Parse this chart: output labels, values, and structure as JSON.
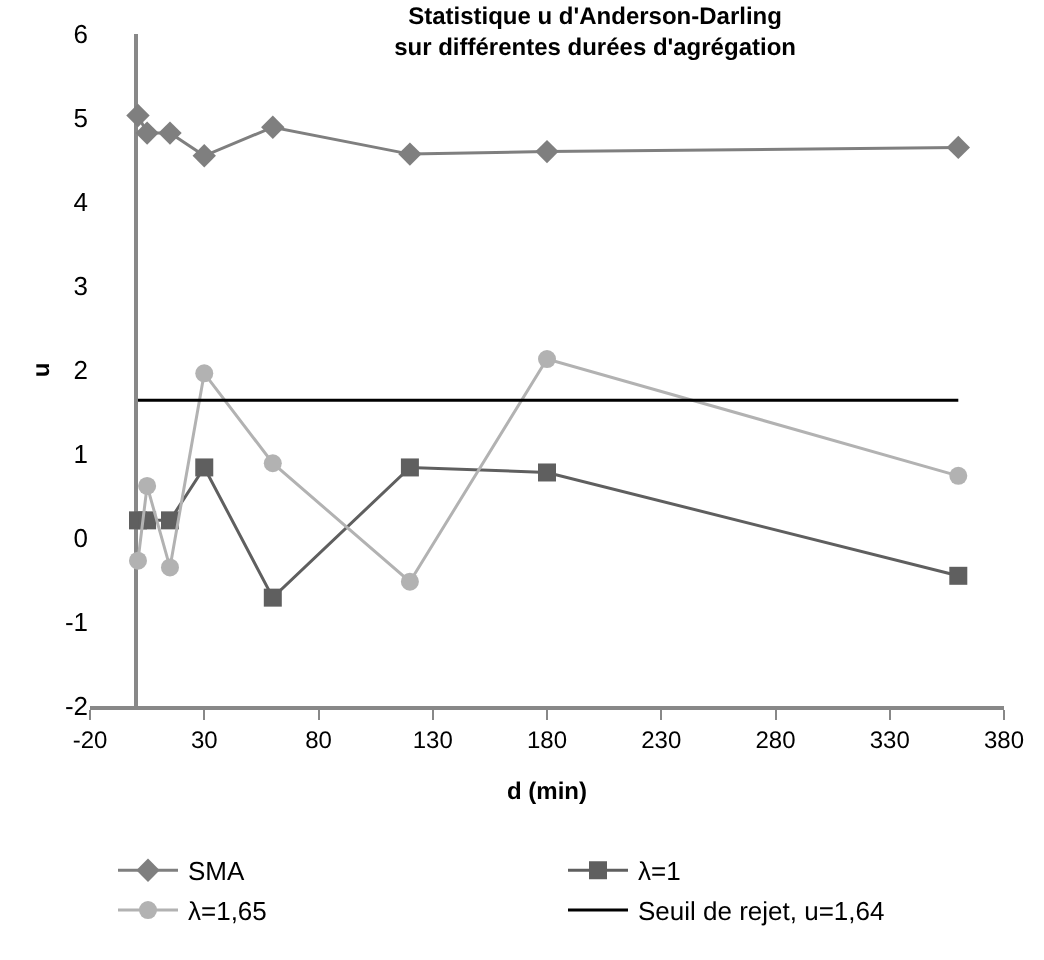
{
  "chart_data": {
    "type": "line",
    "title": "Statistique u d'Anderson-Darling\nsur différentes durées d'agrégation",
    "xlabel": "d (min)",
    "ylabel": "u",
    "x": [
      1,
      5,
      15,
      30,
      60,
      120,
      180,
      360
    ],
    "series": [
      {
        "name": "SMA",
        "color": "#7f7f7f",
        "marker": "diamond",
        "values": [
          5.03,
          4.82,
          4.82,
          4.55,
          4.89,
          4.57,
          4.6,
          4.65
        ]
      },
      {
        "name": "λ=1",
        "color": "#5f5f5f",
        "marker": "square",
        "values": [
          0.21,
          0.21,
          0.21,
          0.84,
          -0.71,
          0.84,
          0.78,
          -0.45
        ]
      },
      {
        "name": "λ=1,65",
        "color": "#b2b2b2",
        "marker": "circle",
        "values": [
          -0.27,
          0.62,
          -0.35,
          1.96,
          0.89,
          -0.52,
          2.13,
          0.74
        ]
      },
      {
        "name": "Seuil de rejet, u=1,64",
        "color": "#000000",
        "marker": "none",
        "x": [
          1,
          360
        ],
        "values": [
          1.64,
          1.64
        ]
      }
    ],
    "xlim": [
      -20,
      380
    ],
    "xticks": [
      -20,
      30,
      80,
      130,
      180,
      230,
      280,
      330,
      380
    ],
    "ylim": [
      -2,
      6
    ],
    "yticks": [
      -2,
      -1,
      0,
      1,
      2,
      3,
      4,
      5,
      6
    ],
    "grid": false,
    "legend": "bottom"
  }
}
